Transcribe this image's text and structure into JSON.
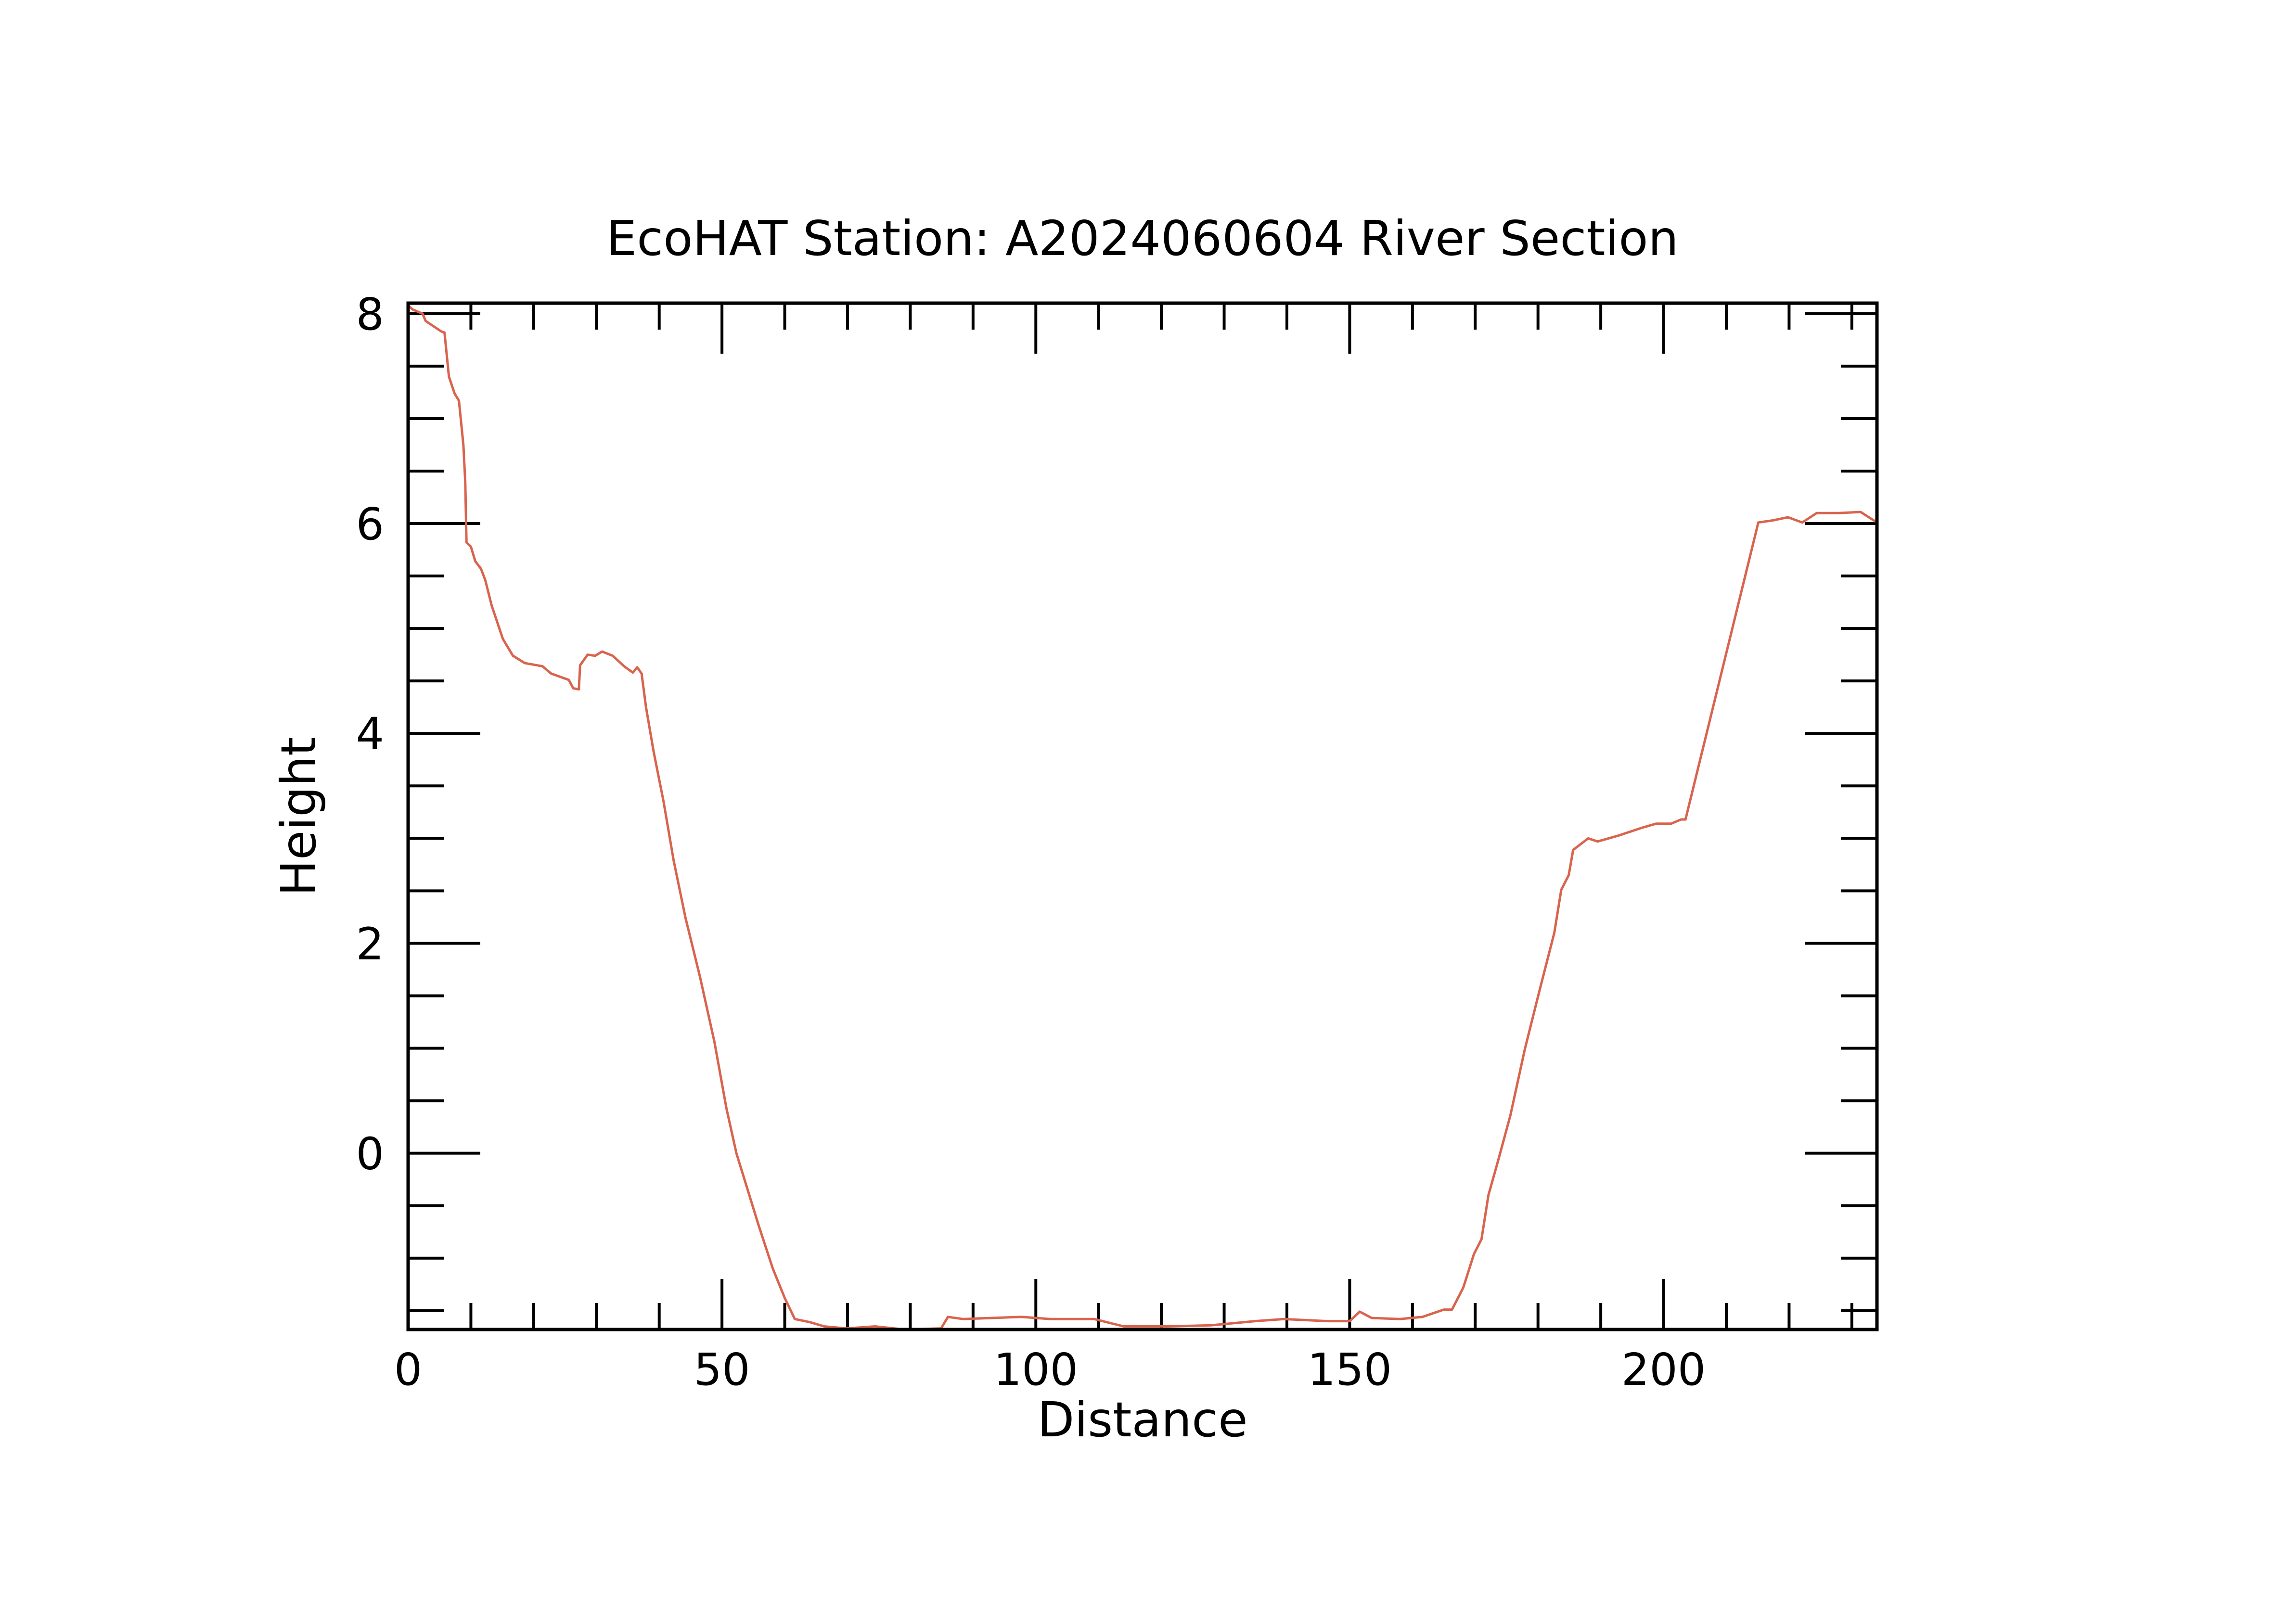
{
  "chart_data": {
    "type": "line",
    "title": "EcoHAT Station: A2024060604 River Section",
    "xlabel": "Distance",
    "ylabel": "Height",
    "xlim": [
      0,
      234
    ],
    "ylim": [
      -1.68,
      8.1
    ],
    "xticks": [
      0,
      50,
      100,
      150,
      200
    ],
    "xtick_labels": [
      "0",
      "50",
      "100",
      "150",
      "200"
    ],
    "yticks": [
      0,
      2,
      4,
      6,
      8
    ],
    "ytick_labels": [
      "0",
      "2",
      "4",
      "6",
      "8"
    ],
    "x_minor_step": 10,
    "y_minor_step": 0.5,
    "grid": false,
    "line_color": "#d9644e",
    "series": [
      {
        "name": "River Section",
        "x": [
          0,
          0.7,
          2.3,
          2.8,
          5.3,
          5.8,
          6.5,
          7.4,
          8.1,
          8.8,
          9.1,
          9.3,
          10,
          10.7,
          11.6,
          12.3,
          13.3,
          15.1,
          16.7,
          18.6,
          21.4,
          22.8,
          25.6,
          26.3,
          27.2,
          27.4,
          28.6,
          29.8,
          30.9,
          32.6,
          34.4,
          35.8,
          36.5,
          37.2,
          37.9,
          39.1,
          40.7,
          42.3,
          44.2,
          46.5,
          48.8,
          50.7,
          52.3,
          54,
          55.8,
          58.1,
          60,
          61.6,
          64,
          66.3,
          69.8,
          74.4,
          79,
          84.9,
          86,
          88.4,
          93,
          97.7,
          102.3,
          109.3,
          114,
          121,
          127.9,
          134.9,
          139.5,
          146.5,
          150,
          151.6,
          153.5,
          158,
          161.6,
          165,
          166.3,
          168.1,
          169.8,
          171,
          172.1,
          173.7,
          175.6,
          177.9,
          180.2,
          182.6,
          183.7,
          184.9,
          185.6,
          188,
          189.5,
          193,
          196.5,
          198.8,
          201.2,
          202.8,
          203.5,
          215.1,
          217.4,
          219.8,
          222.1,
          224.4,
          227.9,
          231.4,
          234
        ],
        "y": [
          8.08,
          8.04,
          8.0,
          7.93,
          7.83,
          7.82,
          7.4,
          7.24,
          7.17,
          6.75,
          6.4,
          5.82,
          5.78,
          5.64,
          5.57,
          5.46,
          5.22,
          4.9,
          4.74,
          4.67,
          4.64,
          4.57,
          4.51,
          4.43,
          4.42,
          4.65,
          4.75,
          4.74,
          4.78,
          4.74,
          4.64,
          4.58,
          4.63,
          4.57,
          4.25,
          3.83,
          3.35,
          2.79,
          2.24,
          1.68,
          1.06,
          0.43,
          0,
          -0.33,
          -0.68,
          -1.1,
          -1.38,
          -1.58,
          -1.61,
          -1.65,
          -1.67,
          -1.65,
          -1.68,
          -1.67,
          -1.56,
          -1.58,
          -1.57,
          -1.56,
          -1.58,
          -1.58,
          -1.65,
          -1.65,
          -1.64,
          -1.6,
          -1.58,
          -1.6,
          -1.6,
          -1.51,
          -1.57,
          -1.58,
          -1.56,
          -1.49,
          -1.49,
          -1.28,
          -0.96,
          -0.82,
          -0.4,
          -0.06,
          0.36,
          0.99,
          1.54,
          2.1,
          2.51,
          2.65,
          2.89,
          3.0,
          2.97,
          3.03,
          3.1,
          3.14,
          3.14,
          3.18,
          3.18,
          6.01,
          6.03,
          6.06,
          6.01,
          6.1,
          6.1,
          6.11,
          6.01
        ]
      }
    ]
  }
}
